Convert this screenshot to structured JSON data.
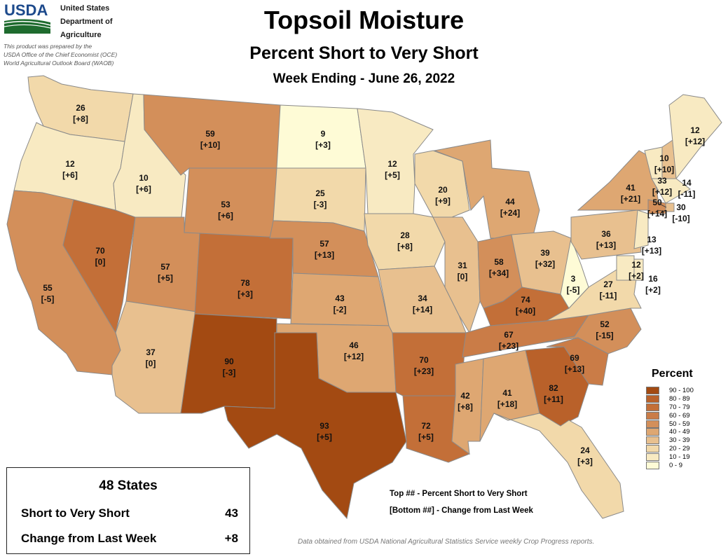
{
  "header": {
    "logo_text": "USDA",
    "agency_lines": [
      "United States",
      "Department of",
      "Agriculture"
    ],
    "prepared_lines": [
      "This product was prepared by the",
      "USDA Office of the Chief Economist (OCE)",
      "World Agricultural Outlook Board (WAOB)"
    ],
    "title": "Topsoil Moisture",
    "subtitle": "Percent Short to Very Short",
    "week": "Week Ending - June 26, 2022"
  },
  "legend": {
    "title": "Percent",
    "items": [
      {
        "label": "90 - 100",
        "color": "#a34a12"
      },
      {
        "label": "80 - 89",
        "color": "#b9612a"
      },
      {
        "label": "70 - 79",
        "color": "#c36f38"
      },
      {
        "label": "60 - 69",
        "color": "#ca7c47"
      },
      {
        "label": "50 - 59",
        "color": "#d38f5a"
      },
      {
        "label": "40 - 49",
        "color": "#dea772"
      },
      {
        "label": "30 - 39",
        "color": "#e8c08f"
      },
      {
        "label": "20 - 29",
        "color": "#f2d9aa"
      },
      {
        "label": "10 - 19",
        "color": "#f8eac2"
      },
      {
        "label": "0 - 9",
        "color": "#fefbd6"
      }
    ]
  },
  "states": [
    {
      "id": "WA",
      "value": "26",
      "change": "[+8]"
    },
    {
      "id": "OR",
      "value": "12",
      "change": "[+6]"
    },
    {
      "id": "CA",
      "value": "55",
      "change": "[-5]"
    },
    {
      "id": "NV",
      "value": "70",
      "change": "[0]"
    },
    {
      "id": "ID",
      "value": "10",
      "change": "[+6]"
    },
    {
      "id": "MT",
      "value": "59",
      "change": "[+10]"
    },
    {
      "id": "WY",
      "value": "53",
      "change": "[+6]"
    },
    {
      "id": "UT",
      "value": "57",
      "change": "[+5]"
    },
    {
      "id": "AZ",
      "value": "37",
      "change": "[0]"
    },
    {
      "id": "CO",
      "value": "78",
      "change": "[+3]"
    },
    {
      "id": "NM",
      "value": "90",
      "change": "[-3]"
    },
    {
      "id": "ND",
      "value": "9",
      "change": "[+3]"
    },
    {
      "id": "SD",
      "value": "25",
      "change": "[-3]"
    },
    {
      "id": "NE",
      "value": "57",
      "change": "[+13]"
    },
    {
      "id": "KS",
      "value": "43",
      "change": "[-2]"
    },
    {
      "id": "OK",
      "value": "46",
      "change": "[+12]"
    },
    {
      "id": "TX",
      "value": "93",
      "change": "[+5]"
    },
    {
      "id": "MN",
      "value": "12",
      "change": "[+5]"
    },
    {
      "id": "IA",
      "value": "28",
      "change": "[+8]"
    },
    {
      "id": "MO",
      "value": "34",
      "change": "[+14]"
    },
    {
      "id": "AR",
      "value": "70",
      "change": "[+23]"
    },
    {
      "id": "LA",
      "value": "72",
      "change": "[+5]"
    },
    {
      "id": "WI",
      "value": "20",
      "change": "[+9]"
    },
    {
      "id": "IL",
      "value": "31",
      "change": "[0]"
    },
    {
      "id": "MI",
      "value": "44",
      "change": "[+24]"
    },
    {
      "id": "IN",
      "value": "58",
      "change": "[+34]"
    },
    {
      "id": "OH",
      "value": "39",
      "change": "[+32]"
    },
    {
      "id": "KY",
      "value": "74",
      "change": "[+40]"
    },
    {
      "id": "TN",
      "value": "67",
      "change": "[+23]"
    },
    {
      "id": "MS",
      "value": "42",
      "change": "[+8]"
    },
    {
      "id": "AL",
      "value": "41",
      "change": "[+18]"
    },
    {
      "id": "GA",
      "value": "82",
      "change": "[+11]"
    },
    {
      "id": "FL",
      "value": "24",
      "change": "[+3]"
    },
    {
      "id": "SC",
      "value": "69",
      "change": "[+13]"
    },
    {
      "id": "NC",
      "value": "52",
      "change": "[-15]"
    },
    {
      "id": "VA",
      "value": "27",
      "change": "[-11]"
    },
    {
      "id": "WV",
      "value": "3",
      "change": "[-5]"
    },
    {
      "id": "PA",
      "value": "36",
      "change": "[+13]"
    },
    {
      "id": "NY",
      "value": "41",
      "change": "[+21]"
    },
    {
      "id": "VT",
      "value": "10",
      "change": "[+10]"
    },
    {
      "id": "NH",
      "value": "33",
      "change": "[+12]"
    },
    {
      "id": "ME",
      "value": "12",
      "change": "[+12]"
    },
    {
      "id": "MA",
      "value": "14",
      "change": "[-11]"
    },
    {
      "id": "CT",
      "value": "50",
      "change": "[+14]"
    },
    {
      "id": "RI",
      "value": "30",
      "change": "[-10]"
    },
    {
      "id": "NJ",
      "value": "13",
      "change": "[+13]"
    },
    {
      "id": "DE",
      "value": "16",
      "change": "[+2]"
    },
    {
      "id": "MD",
      "value": "12",
      "change": "[+2]"
    }
  ],
  "summary": {
    "title": "48 States",
    "short_label": "Short to Very Short",
    "short_value": "43",
    "change_label": "Change from Last Week",
    "change_value": "+8"
  },
  "notes": {
    "top": "Top ## - Percent Short to Very Short",
    "bottom": "[Bottom ##] - Change from Last Week",
    "footer": "Data obtained from USDA National Agricultural Statistics Service weekly Crop Progress reports."
  }
}
